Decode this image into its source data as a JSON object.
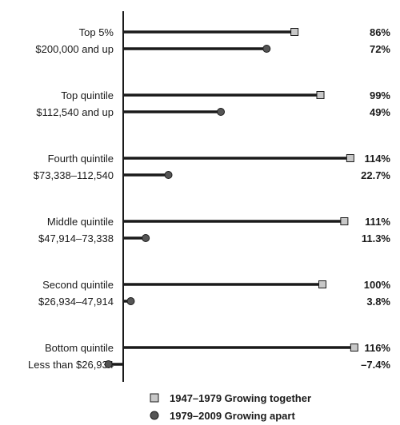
{
  "chart_data": {
    "type": "bar",
    "categories": [
      {
        "name": "Top 5%",
        "range": "$200,000 and up"
      },
      {
        "name": "Top quintile",
        "range": "$112,540 and up"
      },
      {
        "name": "Fourth quintile",
        "range": "$73,338–112,540"
      },
      {
        "name": "Middle quintile",
        "range": "$47,914–73,338"
      },
      {
        "name": "Second quintile",
        "range": "$26,934–47,914"
      },
      {
        "name": "Bottom quintile",
        "range": "Less than $26,934"
      }
    ],
    "series": [
      {
        "name": "1947–1979 Growing together",
        "marker": "square",
        "values": [
          86,
          99,
          114,
          111,
          100,
          116
        ],
        "labels": [
          "86%",
          "99%",
          "114%",
          "111%",
          "100%",
          "116%"
        ]
      },
      {
        "name": "1979–2009 Growing apart",
        "marker": "circle",
        "values": [
          72,
          49,
          22.7,
          11.3,
          3.8,
          -7.4
        ],
        "labels": [
          "72%",
          "49%",
          "22.7%",
          "11.3%",
          "3.8%",
          "–7.4%"
        ]
      }
    ],
    "xlim": [
      -9,
      120
    ],
    "grid": false,
    "legend_position": "bottom-center",
    "colors": {
      "line": "#1a1a1a",
      "square_fill": "#c8c8c8",
      "circle_fill": "#555555"
    }
  }
}
